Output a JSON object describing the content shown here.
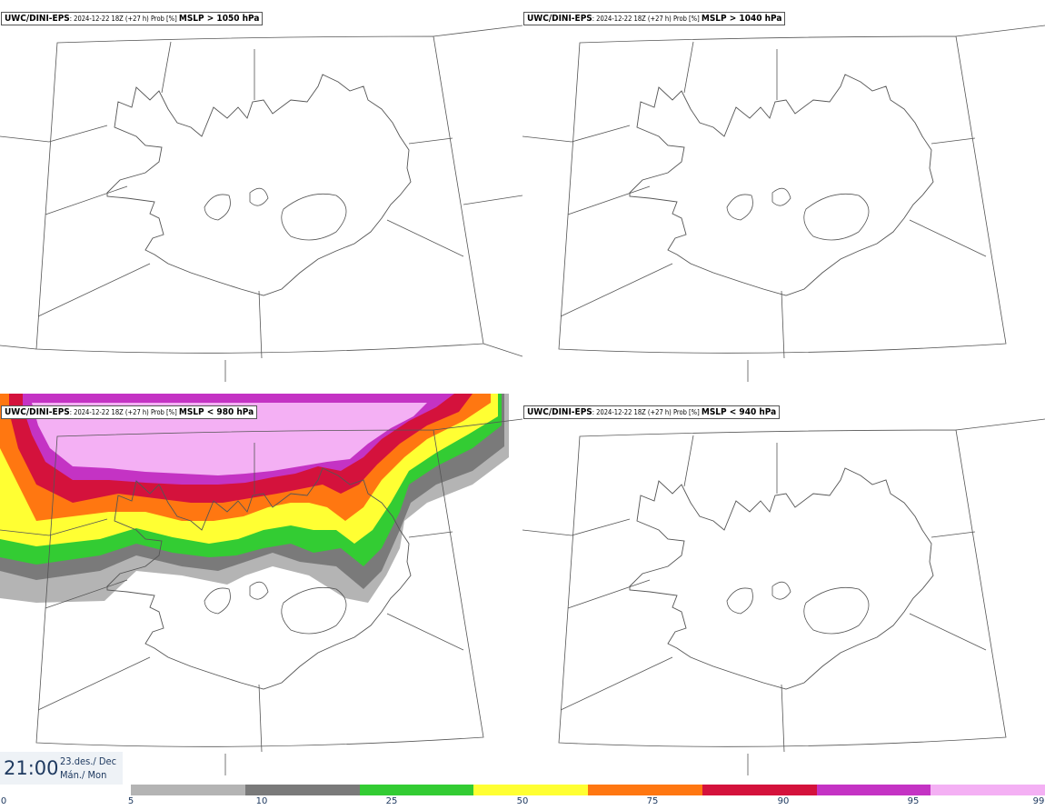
{
  "panels": [
    {
      "model": "UWC/DINI-EPS",
      "run": ": 2024-12-22 18Z (+27 h) Prob [%] ",
      "threshold": "MSLP > 1050 hPa"
    },
    {
      "model": "UWC/DINI-EPS",
      "run": ": 2024-12-22 18Z (+27 h) Prob [%] ",
      "threshold": "MSLP > 1040 hPa"
    },
    {
      "model": "UWC/DINI-EPS",
      "run": ": 2024-12-22 18Z (+27 h) Prob [%] ",
      "threshold": "MSLP < 980 hPa"
    },
    {
      "model": "UWC/DINI-EPS",
      "run": ": 2024-12-22 18Z (+27 h) Prob [%] ",
      "threshold": "MSLP < 940 hPa"
    }
  ],
  "time": {
    "clock": "21:00",
    "date_line1": "23.des./ Dec",
    "date_line2": "Mán./ Mon"
  },
  "legend": {
    "ticks": [
      "0",
      "5",
      "10",
      "25",
      "50",
      "75",
      "90",
      "95",
      "99"
    ],
    "colors": [
      "#b4b4b4",
      "#7a7a7a",
      "#33cc33",
      "#ffff33",
      "#ff7711",
      "#d4123c",
      "#c433c4",
      "#f4b0f4"
    ]
  }
}
